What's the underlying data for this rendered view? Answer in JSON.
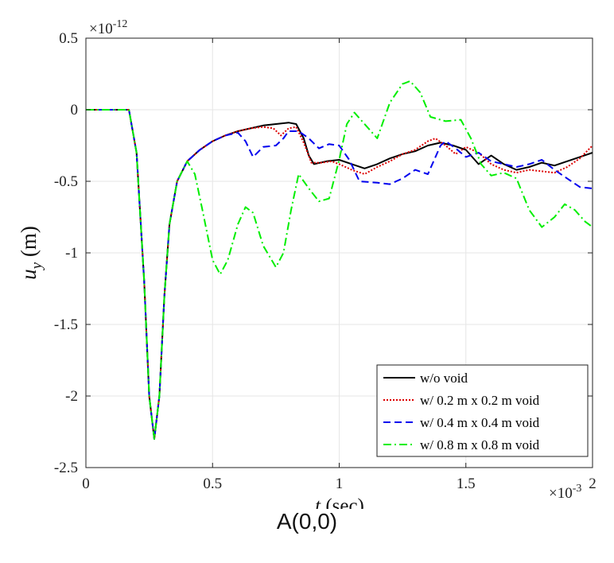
{
  "caption": "A(0,0)",
  "chart_data": {
    "type": "line",
    "xlabel_var": "t",
    "xlabel_unit": "(sec)",
    "ylabel_var": "u",
    "ylabel_sub": "y",
    "ylabel_unit": "(m)",
    "x_multiplier_base": "×10",
    "x_multiplier_exp": "-3",
    "y_multiplier_base": "×10",
    "y_multiplier_exp": "-12",
    "xlim": [
      0,
      2
    ],
    "ylim": [
      -2.5,
      0.5
    ],
    "x_ticks": [
      0,
      0.5,
      1,
      1.5,
      2
    ],
    "x_tick_labels": [
      "0",
      "0.5",
      "1",
      "1.5",
      "2"
    ],
    "y_ticks": [
      0.5,
      0,
      -0.5,
      -1,
      -1.5,
      -2,
      -2.5
    ],
    "y_tick_labels": [
      "0.5",
      "0",
      "-0.5",
      "-1",
      "-1.5",
      "-2",
      "-2.5"
    ],
    "grid": true,
    "legend_position": "bottom-right",
    "series": [
      {
        "name": "w/o void",
        "color": "#000000",
        "dash": "solid",
        "points": [
          [
            0,
            0
          ],
          [
            0.17,
            0
          ],
          [
            0.2,
            -0.3
          ],
          [
            0.23,
            -1.2
          ],
          [
            0.25,
            -2.0
          ],
          [
            0.27,
            -2.3
          ],
          [
            0.29,
            -2.0
          ],
          [
            0.31,
            -1.3
          ],
          [
            0.33,
            -0.8
          ],
          [
            0.36,
            -0.5
          ],
          [
            0.4,
            -0.36
          ],
          [
            0.45,
            -0.28
          ],
          [
            0.5,
            -0.22
          ],
          [
            0.55,
            -0.18
          ],
          [
            0.6,
            -0.15
          ],
          [
            0.65,
            -0.13
          ],
          [
            0.7,
            -0.11
          ],
          [
            0.75,
            -0.1
          ],
          [
            0.8,
            -0.09
          ],
          [
            0.83,
            -0.1
          ],
          [
            0.86,
            -0.2
          ],
          [
            0.88,
            -0.32
          ],
          [
            0.9,
            -0.38
          ],
          [
            0.95,
            -0.36
          ],
          [
            1.0,
            -0.35
          ],
          [
            1.05,
            -0.38
          ],
          [
            1.1,
            -0.41
          ],
          [
            1.15,
            -0.38
          ],
          [
            1.2,
            -0.34
          ],
          [
            1.25,
            -0.31
          ],
          [
            1.3,
            -0.29
          ],
          [
            1.35,
            -0.25
          ],
          [
            1.4,
            -0.23
          ],
          [
            1.45,
            -0.25
          ],
          [
            1.5,
            -0.28
          ],
          [
            1.55,
            -0.38
          ],
          [
            1.6,
            -0.32
          ],
          [
            1.65,
            -0.38
          ],
          [
            1.7,
            -0.42
          ],
          [
            1.75,
            -0.4
          ],
          [
            1.8,
            -0.37
          ],
          [
            1.85,
            -0.39
          ],
          [
            1.9,
            -0.36
          ],
          [
            1.95,
            -0.33
          ],
          [
            2.0,
            -0.3
          ]
        ]
      },
      {
        "name": "w/ 0.2 m x 0.2 m void",
        "color": "#dd0000",
        "dash": "dotted",
        "points": [
          [
            0,
            0
          ],
          [
            0.17,
            0
          ],
          [
            0.2,
            -0.3
          ],
          [
            0.23,
            -1.2
          ],
          [
            0.25,
            -2.0
          ],
          [
            0.27,
            -2.3
          ],
          [
            0.29,
            -2.0
          ],
          [
            0.31,
            -1.3
          ],
          [
            0.33,
            -0.8
          ],
          [
            0.36,
            -0.5
          ],
          [
            0.4,
            -0.36
          ],
          [
            0.45,
            -0.28
          ],
          [
            0.5,
            -0.22
          ],
          [
            0.55,
            -0.18
          ],
          [
            0.6,
            -0.15
          ],
          [
            0.65,
            -0.13
          ],
          [
            0.7,
            -0.12
          ],
          [
            0.74,
            -0.13
          ],
          [
            0.77,
            -0.18
          ],
          [
            0.8,
            -0.13
          ],
          [
            0.83,
            -0.12
          ],
          [
            0.86,
            -0.23
          ],
          [
            0.89,
            -0.37
          ],
          [
            0.93,
            -0.37
          ],
          [
            0.97,
            -0.36
          ],
          [
            1.0,
            -0.38
          ],
          [
            1.05,
            -0.42
          ],
          [
            1.1,
            -0.45
          ],
          [
            1.15,
            -0.4
          ],
          [
            1.2,
            -0.36
          ],
          [
            1.25,
            -0.31
          ],
          [
            1.3,
            -0.28
          ],
          [
            1.35,
            -0.22
          ],
          [
            1.38,
            -0.2
          ],
          [
            1.42,
            -0.25
          ],
          [
            1.46,
            -0.31
          ],
          [
            1.5,
            -0.26
          ],
          [
            1.55,
            -0.3
          ],
          [
            1.6,
            -0.38
          ],
          [
            1.65,
            -0.42
          ],
          [
            1.7,
            -0.44
          ],
          [
            1.75,
            -0.42
          ],
          [
            1.8,
            -0.43
          ],
          [
            1.85,
            -0.44
          ],
          [
            1.9,
            -0.4
          ],
          [
            1.95,
            -0.34
          ],
          [
            2.0,
            -0.25
          ]
        ]
      },
      {
        "name": "w/ 0.4 m x 0.4 m void",
        "color": "#0000ee",
        "dash": "dashed",
        "points": [
          [
            0,
            0
          ],
          [
            0.17,
            0
          ],
          [
            0.2,
            -0.3
          ],
          [
            0.23,
            -1.2
          ],
          [
            0.25,
            -2.0
          ],
          [
            0.27,
            -2.3
          ],
          [
            0.29,
            -2.0
          ],
          [
            0.31,
            -1.3
          ],
          [
            0.33,
            -0.8
          ],
          [
            0.36,
            -0.5
          ],
          [
            0.4,
            -0.36
          ],
          [
            0.45,
            -0.28
          ],
          [
            0.5,
            -0.22
          ],
          [
            0.55,
            -0.18
          ],
          [
            0.6,
            -0.16
          ],
          [
            0.63,
            -0.22
          ],
          [
            0.66,
            -0.33
          ],
          [
            0.7,
            -0.26
          ],
          [
            0.75,
            -0.25
          ],
          [
            0.78,
            -0.2
          ],
          [
            0.8,
            -0.15
          ],
          [
            0.84,
            -0.15
          ],
          [
            0.88,
            -0.2
          ],
          [
            0.92,
            -0.27
          ],
          [
            0.96,
            -0.24
          ],
          [
            1.0,
            -0.25
          ],
          [
            1.04,
            -0.35
          ],
          [
            1.08,
            -0.5
          ],
          [
            1.15,
            -0.51
          ],
          [
            1.2,
            -0.52
          ],
          [
            1.25,
            -0.48
          ],
          [
            1.3,
            -0.42
          ],
          [
            1.35,
            -0.45
          ],
          [
            1.4,
            -0.25
          ],
          [
            1.42,
            -0.22
          ],
          [
            1.46,
            -0.27
          ],
          [
            1.5,
            -0.33
          ],
          [
            1.55,
            -0.3
          ],
          [
            1.6,
            -0.36
          ],
          [
            1.65,
            -0.38
          ],
          [
            1.7,
            -0.4
          ],
          [
            1.75,
            -0.38
          ],
          [
            1.8,
            -0.35
          ],
          [
            1.85,
            -0.42
          ],
          [
            1.9,
            -0.48
          ],
          [
            1.95,
            -0.54
          ],
          [
            2.0,
            -0.55
          ]
        ]
      },
      {
        "name": "w/ 0.8 m x 0.8 m void",
        "color": "#00ee00",
        "dash": "dashdot",
        "points": [
          [
            0,
            0
          ],
          [
            0.17,
            0
          ],
          [
            0.2,
            -0.3
          ],
          [
            0.23,
            -1.2
          ],
          [
            0.25,
            -2.0
          ],
          [
            0.27,
            -2.3
          ],
          [
            0.29,
            -2.0
          ],
          [
            0.31,
            -1.3
          ],
          [
            0.33,
            -0.8
          ],
          [
            0.36,
            -0.5
          ],
          [
            0.4,
            -0.36
          ],
          [
            0.43,
            -0.45
          ],
          [
            0.46,
            -0.7
          ],
          [
            0.5,
            -1.05
          ],
          [
            0.53,
            -1.15
          ],
          [
            0.56,
            -1.05
          ],
          [
            0.6,
            -0.8
          ],
          [
            0.63,
            -0.68
          ],
          [
            0.66,
            -0.72
          ],
          [
            0.7,
            -0.95
          ],
          [
            0.75,
            -1.1
          ],
          [
            0.78,
            -1.0
          ],
          [
            0.81,
            -0.7
          ],
          [
            0.84,
            -0.45
          ],
          [
            0.88,
            -0.55
          ],
          [
            0.92,
            -0.64
          ],
          [
            0.96,
            -0.62
          ],
          [
            1.0,
            -0.35
          ],
          [
            1.03,
            -0.1
          ],
          [
            1.06,
            -0.02
          ],
          [
            1.1,
            -0.1
          ],
          [
            1.15,
            -0.2
          ],
          [
            1.2,
            0.05
          ],
          [
            1.25,
            0.18
          ],
          [
            1.28,
            0.2
          ],
          [
            1.32,
            0.12
          ],
          [
            1.36,
            -0.05
          ],
          [
            1.42,
            -0.08
          ],
          [
            1.48,
            -0.07
          ],
          [
            1.52,
            -0.2
          ],
          [
            1.56,
            -0.38
          ],
          [
            1.6,
            -0.46
          ],
          [
            1.65,
            -0.44
          ],
          [
            1.7,
            -0.48
          ],
          [
            1.75,
            -0.7
          ],
          [
            1.8,
            -0.82
          ],
          [
            1.85,
            -0.75
          ],
          [
            1.89,
            -0.66
          ],
          [
            1.93,
            -0.7
          ],
          [
            1.97,
            -0.78
          ],
          [
            2.0,
            -0.82
          ]
        ]
      }
    ]
  }
}
